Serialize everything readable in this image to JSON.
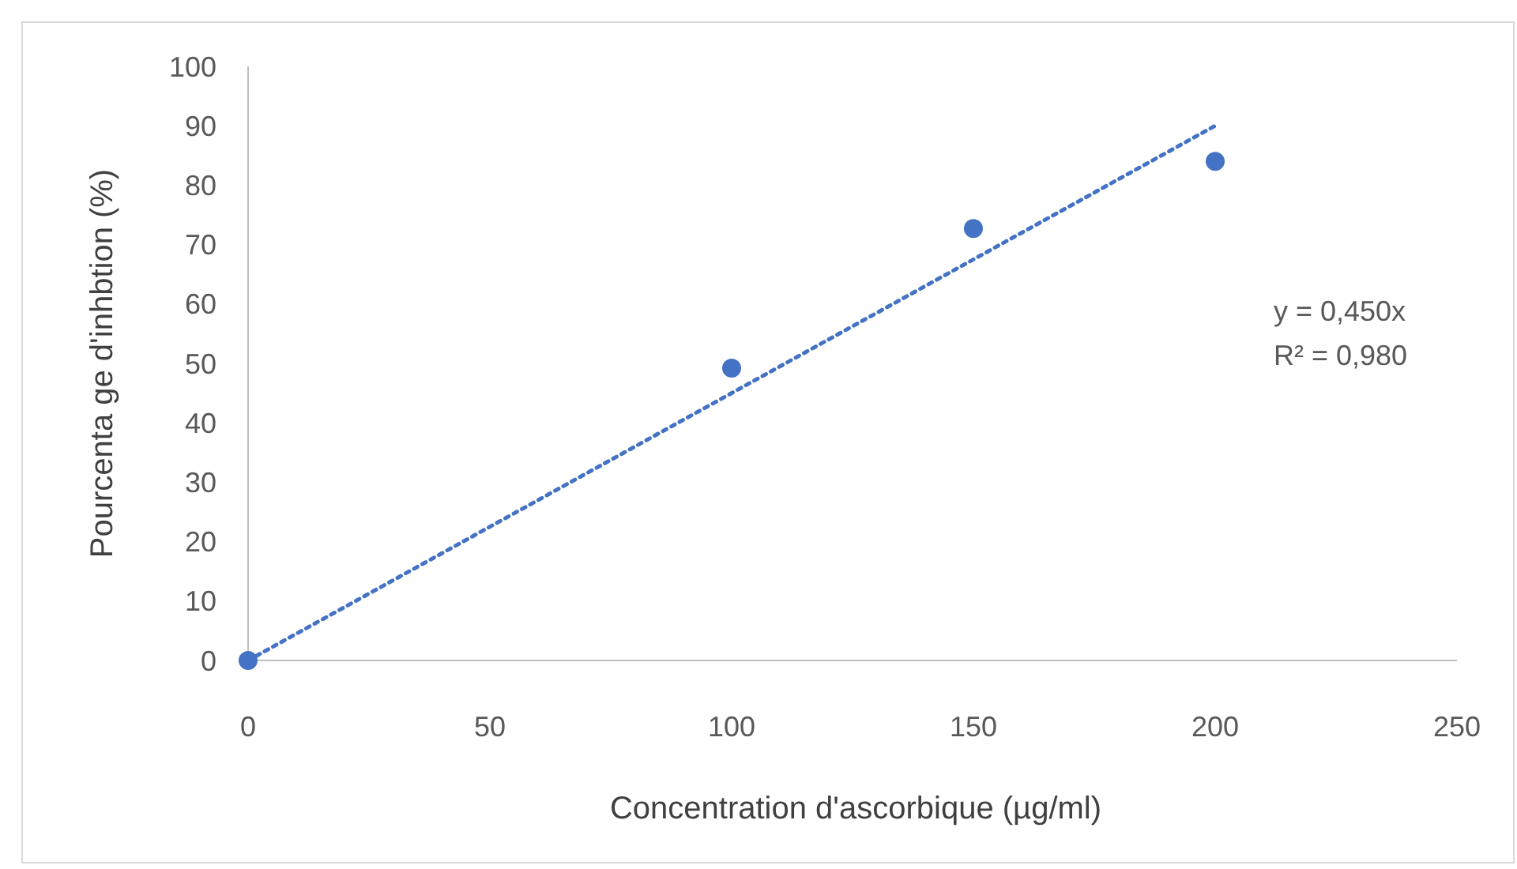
{
  "chart_data": {
    "type": "scatter",
    "xlabel": "Concentration d'ascorbique (µg/ml)",
    "ylabel": "Pourcenta ge d'inhbtion (%)",
    "x": [
      0,
      100,
      150,
      200
    ],
    "xlim": [
      0,
      250
    ],
    "xticks": [
      0,
      50,
      100,
      150,
      200,
      250
    ],
    "ylim": [
      0,
      100
    ],
    "yticks": [
      0,
      10,
      20,
      30,
      40,
      50,
      60,
      70,
      80,
      90,
      100
    ],
    "series": [
      {
        "color": "#4472c4",
        "values": [
          0,
          49.2,
          72.7,
          84
        ],
        "marker": "circle"
      },
      {
        "type": "line",
        "color": "#4472c4",
        "x": [
          0,
          200
        ],
        "values": [
          0,
          90
        ],
        "line_style": "dotted"
      }
    ],
    "annotations": [
      "y = 0,450x",
      "R² = 0,980"
    ],
    "grid": false
  }
}
